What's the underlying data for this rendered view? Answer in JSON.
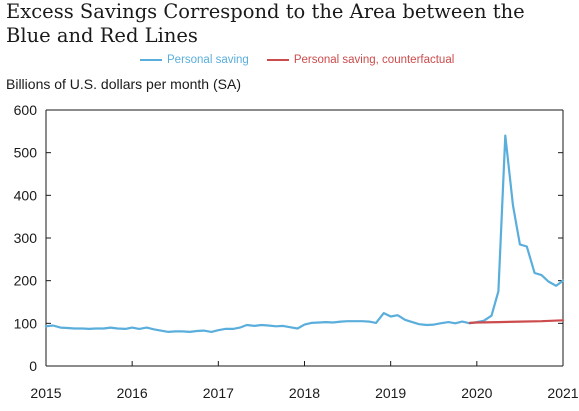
{
  "chart_data": {
    "type": "line",
    "title": "Excess Savings Correspond to the Area between the Blue and Red Lines",
    "ylabel": "Billions of U.S. dollars per month (SA)",
    "xlabel": "",
    "ylim": [
      0,
      600
    ],
    "xlim": [
      2015.0,
      2021.0
    ],
    "yticks": [
      0,
      100,
      200,
      300,
      400,
      500,
      600
    ],
    "xticks": [
      "2015",
      "2016",
      "2017",
      "2018",
      "2019",
      "2020",
      "2021"
    ],
    "grid": false,
    "legend": "top",
    "series": [
      {
        "name": "Personal saving",
        "color": "#5aaedb",
        "x": [
          2015.0,
          2015.08,
          2015.17,
          2015.25,
          2015.33,
          2015.42,
          2015.5,
          2015.58,
          2015.67,
          2015.75,
          2015.83,
          2015.92,
          2016.0,
          2016.08,
          2016.17,
          2016.25,
          2016.33,
          2016.42,
          2016.5,
          2016.58,
          2016.67,
          2016.75,
          2016.83,
          2016.92,
          2017.0,
          2017.08,
          2017.17,
          2017.25,
          2017.33,
          2017.42,
          2017.5,
          2017.58,
          2017.67,
          2017.75,
          2017.83,
          2017.92,
          2018.0,
          2018.08,
          2018.17,
          2018.25,
          2018.33,
          2018.42,
          2018.5,
          2018.58,
          2018.67,
          2018.75,
          2018.83,
          2018.92,
          2019.0,
          2019.08,
          2019.17,
          2019.25,
          2019.33,
          2019.42,
          2019.5,
          2019.58,
          2019.67,
          2019.75,
          2019.83,
          2019.92,
          2020.0,
          2020.08,
          2020.17,
          2020.25,
          2020.33,
          2020.42,
          2020.5,
          2020.58,
          2020.67,
          2020.75,
          2020.83,
          2020.92,
          2021.0
        ],
        "values": [
          93,
          95,
          90,
          89,
          88,
          88,
          87,
          88,
          88,
          90,
          88,
          87,
          90,
          87,
          90,
          86,
          83,
          80,
          81,
          81,
          80,
          82,
          83,
          80,
          84,
          87,
          87,
          90,
          96,
          94,
          96,
          95,
          93,
          94,
          91,
          88,
          97,
          101,
          102,
          103,
          102,
          104,
          105,
          105,
          105,
          104,
          101,
          124,
          116,
          119,
          108,
          103,
          98,
          96,
          97,
          100,
          103,
          100,
          104,
          100,
          103,
          106,
          118,
          175,
          540,
          376,
          285,
          280,
          218,
          213,
          198,
          188,
          200
        ],
        "width": 2.2
      },
      {
        "name": "Personal saving, counterfactual",
        "color": "#cc4b4c",
        "x": [
          2019.92,
          2020.0,
          2020.25,
          2020.5,
          2020.75,
          2021.0
        ],
        "values": [
          101,
          102,
          103,
          104,
          105,
          107
        ],
        "width": 2.2
      }
    ]
  }
}
